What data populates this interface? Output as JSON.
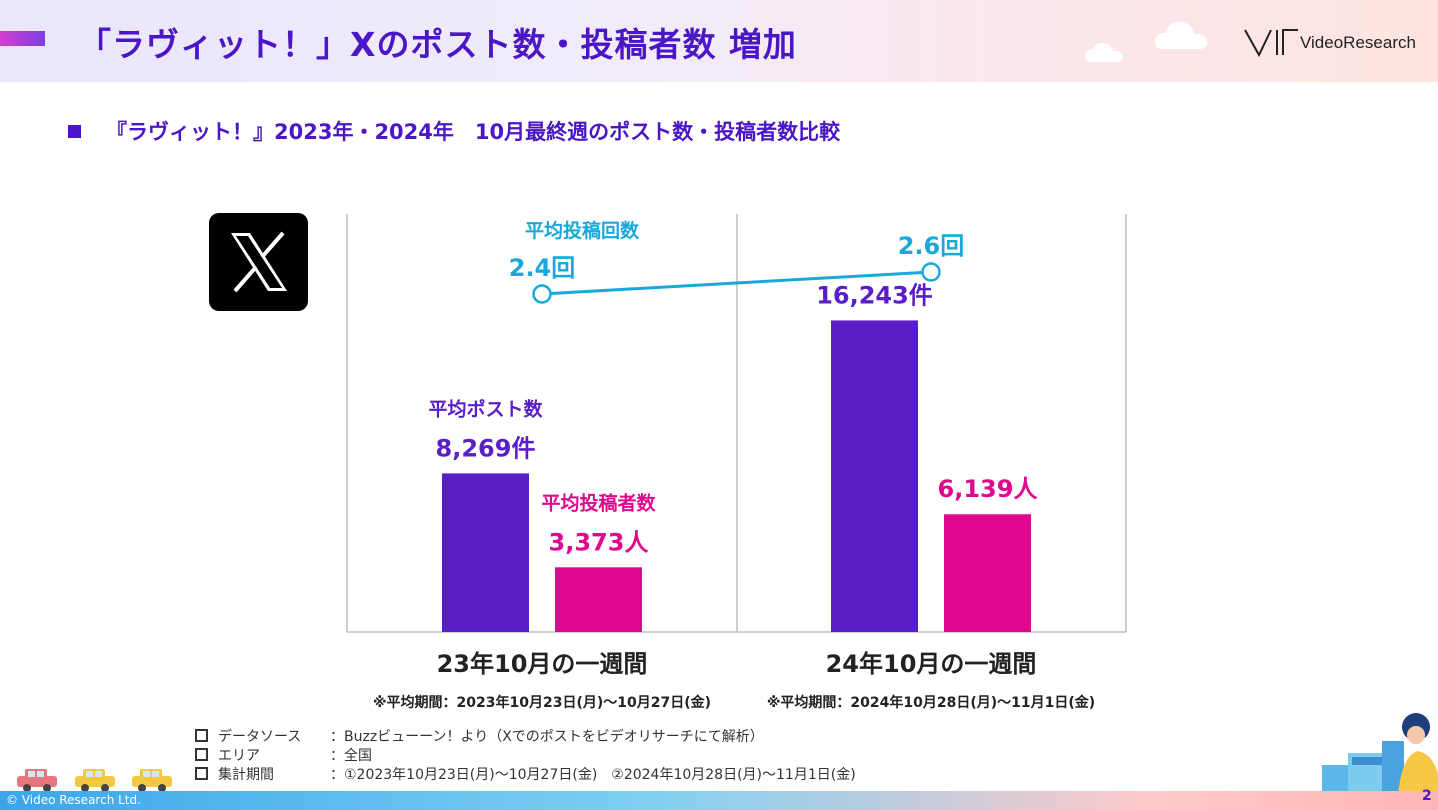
{
  "header": {
    "title": "「ラヴィット！」Xのポスト数・投稿者数 増加",
    "logo_text": "VideoResearch"
  },
  "subtitle": "『ラヴィット！』2023年・2024年　10月最終週のポスト数・投稿者数比較",
  "chart_data": {
    "type": "bar",
    "categories": [
      "23年10月の一週間",
      "24年10月の一週間"
    ],
    "category_notes": [
      "※平均期間：2023年10月23日(月)〜10月27日(金)",
      "※平均期間：2024年10月28日(月)〜11月1日(金)"
    ],
    "series": [
      {
        "name": "平均ポスト数",
        "values": [
          8269,
          16243
        ],
        "labels": [
          "8,269件",
          "16,243件"
        ],
        "color": "#5a1ec8"
      },
      {
        "name": "平均投稿者数",
        "values": [
          3373,
          6139
        ],
        "labels": [
          "3,373人",
          "6,139人"
        ],
        "color": "#e0078f"
      }
    ],
    "line_series": {
      "name": "平均投稿回数",
      "values": [
        2.4,
        2.6
      ],
      "labels": [
        "2.4回",
        "2.6回"
      ],
      "color": "#18a8dc"
    },
    "ylim": [
      0,
      22000
    ],
    "grid": false
  },
  "footnotes": [
    {
      "label": "データソース",
      "value": "：Buzzビューーン！より（Xでのポストをビデオリサーチにて解析）"
    },
    {
      "label": "エリア",
      "value": "：全国"
    },
    {
      "label": "集計期間",
      "value": "：①2023年10月23日(月)〜10月27日(金)　②2024年10月28日(月)〜11月1日(金)"
    }
  ],
  "footer": {
    "copyright": "© Video Research Ltd.",
    "page_number": "2"
  },
  "icons": {
    "x_logo": "x-logo-icon",
    "cloud": "cloud-icon",
    "car": "car-icon"
  }
}
